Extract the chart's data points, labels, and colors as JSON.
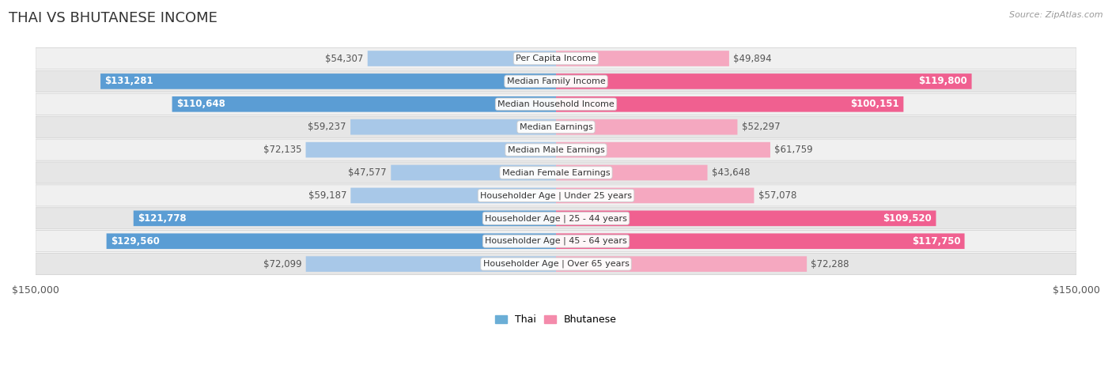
{
  "title": "THAI VS BHUTANESE INCOME",
  "source": "Source: ZipAtlas.com",
  "categories": [
    "Per Capita Income",
    "Median Family Income",
    "Median Household Income",
    "Median Earnings",
    "Median Male Earnings",
    "Median Female Earnings",
    "Householder Age | Under 25 years",
    "Householder Age | 25 - 44 years",
    "Householder Age | 45 - 64 years",
    "Householder Age | Over 65 years"
  ],
  "thai_values": [
    54307,
    131281,
    110648,
    59237,
    72135,
    47577,
    59187,
    121778,
    129560,
    72099
  ],
  "bhutanese_values": [
    49894,
    119800,
    100151,
    52297,
    61759,
    43648,
    57078,
    109520,
    117750,
    72288
  ],
  "thai_labels": [
    "$54,307",
    "$131,281",
    "$110,648",
    "$59,237",
    "$72,135",
    "$47,577",
    "$59,187",
    "$121,778",
    "$129,560",
    "$72,099"
  ],
  "bhutanese_labels": [
    "$49,894",
    "$119,800",
    "$100,151",
    "$52,297",
    "$61,759",
    "$43,648",
    "$57,078",
    "$109,520",
    "$117,750",
    "$72,288"
  ],
  "thai_color_light": "#A8C8E8",
  "thai_color_solid": "#5B9DD4",
  "bhutanese_color_light": "#F5A8C0",
  "bhutanese_color_solid": "#F06090",
  "thai_legend_color": "#6BAED6",
  "bhutanese_legend_color": "#F48BAB",
  "bg_row_odd": "#F0F0F0",
  "bg_row_even": "#E6E6E6",
  "axis_max": 150000,
  "label_fontsize": 8.5,
  "title_fontsize": 13,
  "legend_thai": "Thai",
  "legend_bhutanese": "Bhutanese",
  "threshold_solid": 100000
}
